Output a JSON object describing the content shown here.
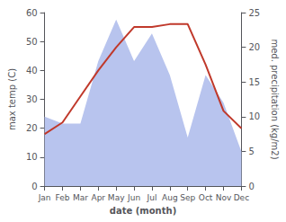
{
  "chart_data": {
    "type": "line",
    "categories": [
      "Jan",
      "Feb",
      "Mar",
      "Apr",
      "May",
      "Jun",
      "Jul",
      "Aug",
      "Sep",
      "Oct",
      "Nov",
      "Dec"
    ],
    "xlabel": "date (month)",
    "ylabel": "max temp (C)",
    "y2label": "med. precipitation (kg/m2)",
    "series": [
      {
        "type": "area",
        "color": "#b8c4ee",
        "axis": "y2",
        "values": [
          10,
          9,
          9,
          18,
          24,
          18,
          22,
          16,
          7,
          16,
          12,
          5
        ]
      },
      {
        "type": "line",
        "color": "#c0392b",
        "values": [
          18,
          22,
          31,
          40,
          48,
          55,
          55,
          56,
          56,
          42,
          26,
          20
        ]
      }
    ],
    "ylim": [
      0,
      60
    ],
    "yticks": [
      0,
      10,
      20,
      30,
      40,
      50,
      60
    ],
    "y2lim": [
      0,
      25
    ],
    "y2ticks": [
      0,
      5,
      10,
      15,
      20,
      25
    ],
    "grid": false
  }
}
